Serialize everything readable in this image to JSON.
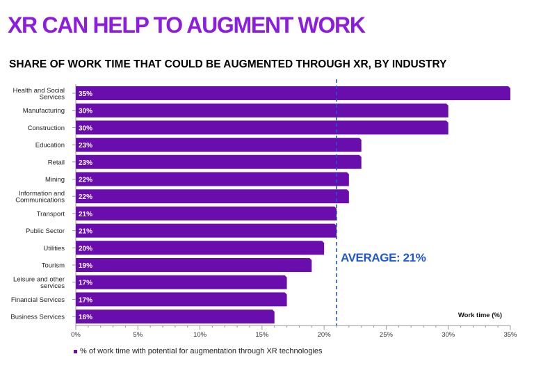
{
  "title": "XR CAN HELP TO AUGMENT WORK",
  "subtitle": "SHARE OF WORK TIME THAT COULD BE AUGMENTED THROUGH XR, BY INDUSTRY",
  "colors": {
    "accent": "#8c1ce0",
    "bar": "#6a0dad",
    "average": "#1f55d6",
    "axis": "#9a9a9a"
  },
  "chart_data": {
    "type": "bar",
    "orientation": "horizontal",
    "categories": [
      [
        "Health and Social",
        "Services"
      ],
      [
        "Manufacturing"
      ],
      [
        "Construction"
      ],
      [
        "Education"
      ],
      [
        "Retail"
      ],
      [
        "Mining"
      ],
      [
        "Information and",
        "Communications"
      ],
      [
        "Transport"
      ],
      [
        "Public Sector"
      ],
      [
        "Utilities"
      ],
      [
        "Tourism"
      ],
      [
        "Leisure and other",
        "services"
      ],
      [
        "Financial Services"
      ],
      [
        "Business Services"
      ]
    ],
    "values": [
      35,
      30,
      30,
      23,
      23,
      22,
      22,
      21,
      21,
      20,
      19,
      17,
      17,
      16
    ],
    "value_labels": [
      "35%",
      "30%",
      "30%",
      "23%",
      "23%",
      "22%",
      "22%",
      "21%",
      "21%",
      "20%",
      "19%",
      "17%",
      "17%",
      "16%"
    ],
    "xlim": [
      0,
      35
    ],
    "xticks": [
      0,
      5,
      10,
      15,
      20,
      25,
      30,
      35
    ],
    "xtick_labels": [
      "0%",
      "5%",
      "10%",
      "15%",
      "20%",
      "25%",
      "30%",
      "35%"
    ],
    "xlabel": "Work time (%)",
    "average": {
      "value": 21,
      "label": "AVERAGE: 21%"
    },
    "legend": "% of work time with potential for augmentation through XR technologies"
  }
}
